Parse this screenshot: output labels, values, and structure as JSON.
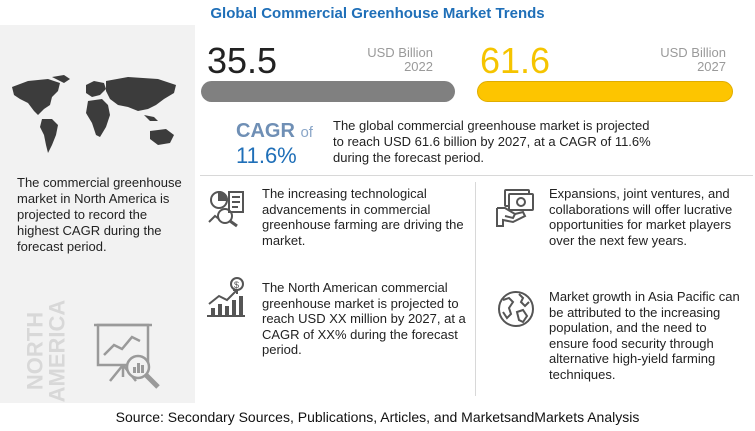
{
  "title": "Global Commercial Greenhouse Market Trends",
  "left_panel": {
    "text": "The commercial greenhouse market in North America is projected to record the highest CAGR during the forecast period.",
    "region_label_line1": "NORTH",
    "region_label_line2": "AMERICA",
    "map_icon": "world-map-icon",
    "analysis_icon": "presentation-magnifier-icon"
  },
  "market_2022": {
    "value": "35.5",
    "unit": "USD Billion",
    "year": "2022",
    "bar_color": "#808080"
  },
  "market_2027": {
    "value": "61.6",
    "unit": "USD Billion",
    "year": "2027",
    "bar_color": "#fdc500"
  },
  "cagr": {
    "label": "CAGR",
    "of": "of",
    "value": "11.6%",
    "description": "The global commercial greenhouse market is projected to reach USD 61.6 billion by 2027, at a CAGR of 11.6% during the forecast period."
  },
  "insights": [
    {
      "icon": "tech-analytics-icon",
      "text": "The increasing technological advancements in commercial greenhouse farming are driving the market."
    },
    {
      "icon": "growth-chart-icon",
      "text": "The North American commercial greenhouse market is projected to reach USD XX million  by 2027, at a CAGR of XX% during the forecast period."
    },
    {
      "icon": "handshake-money-icon",
      "text": "Expansions, joint ventures, and collaborations will offer lucrative opportunities for market players over the next few years."
    },
    {
      "icon": "globe-icon",
      "text": "Market growth in Asia Pacific can be attributed to the increasing population, and the need to ensure food security through alternative high-yield farming techniques."
    }
  ],
  "source": "Source: Secondary Sources, Publications, Articles, and MarketsandMarkets Analysis",
  "colors": {
    "title_blue": "#1f6fb8",
    "accent_yellow": "#f5c400",
    "icon_gray": "#6b6b6b"
  }
}
